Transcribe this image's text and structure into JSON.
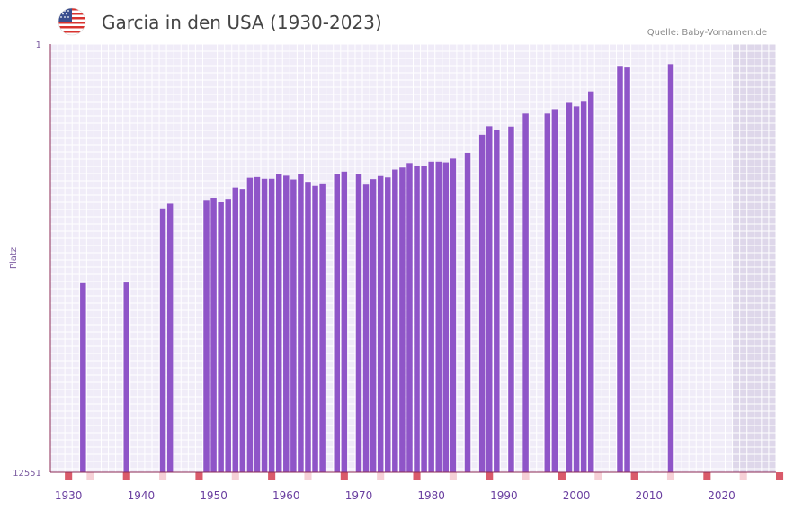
{
  "header": {
    "title": "Garcia in den USA (1930-2023)",
    "source": "Quelle: Baby-Vornamen.de",
    "flag_icon": "usa-flag-icon"
  },
  "colors": {
    "bar": "#8f55c8",
    "grid_bg": "#f0ecf8",
    "grid_line": "#ffffff",
    "axis": "#8b2a55",
    "future_shade": "#d9d2e6",
    "marker_strong": "#d95a6a",
    "marker_weak": "#f6d0d6"
  },
  "chart_data": {
    "type": "bar",
    "title": "Garcia in den USA (1930-2023)",
    "xlabel": "",
    "ylabel": "Platz",
    "y_inverted": true,
    "ylim": [
      1,
      12551
    ],
    "y_ticks": [
      1,
      12551
    ],
    "xlim": [
      1928,
      2028
    ],
    "x_ticks": [
      1930,
      1940,
      1950,
      1960,
      1970,
      1980,
      1990,
      2000,
      2010,
      2020
    ],
    "shaded_range": [
      2022,
      2028
    ],
    "series": [
      {
        "name": "Platz",
        "points": [
          [
            1932,
            7010
          ],
          [
            1938,
            6990
          ],
          [
            1943,
            4820
          ],
          [
            1944,
            4680
          ],
          [
            1949,
            4570
          ],
          [
            1950,
            4510
          ],
          [
            1951,
            4640
          ],
          [
            1952,
            4540
          ],
          [
            1953,
            4210
          ],
          [
            1954,
            4250
          ],
          [
            1955,
            3920
          ],
          [
            1956,
            3900
          ],
          [
            1957,
            3950
          ],
          [
            1958,
            3950
          ],
          [
            1959,
            3800
          ],
          [
            1960,
            3860
          ],
          [
            1961,
            3970
          ],
          [
            1962,
            3820
          ],
          [
            1963,
            4040
          ],
          [
            1964,
            4160
          ],
          [
            1965,
            4110
          ],
          [
            1967,
            3820
          ],
          [
            1968,
            3740
          ],
          [
            1970,
            3820
          ],
          [
            1971,
            4120
          ],
          [
            1972,
            3960
          ],
          [
            1973,
            3870
          ],
          [
            1974,
            3910
          ],
          [
            1975,
            3680
          ],
          [
            1976,
            3620
          ],
          [
            1977,
            3490
          ],
          [
            1978,
            3570
          ],
          [
            1979,
            3570
          ],
          [
            1980,
            3450
          ],
          [
            1981,
            3450
          ],
          [
            1982,
            3470
          ],
          [
            1983,
            3360
          ],
          [
            1985,
            3190
          ],
          [
            1987,
            2660
          ],
          [
            1988,
            2410
          ],
          [
            1989,
            2520
          ],
          [
            1991,
            2420
          ],
          [
            1993,
            2040
          ],
          [
            1996,
            2040
          ],
          [
            1997,
            1910
          ],
          [
            1999,
            1700
          ],
          [
            2000,
            1830
          ],
          [
            2001,
            1670
          ],
          [
            2002,
            1390
          ],
          [
            2006,
            640
          ],
          [
            2007,
            690
          ],
          [
            2013,
            590
          ]
        ]
      }
    ],
    "year_markers_strong": [
      1930,
      1938,
      1948,
      1958,
      1968,
      1978,
      1988,
      1998,
      2008,
      2018,
      2028
    ],
    "year_markers_weak": [
      1933,
      1943,
      1953,
      1963,
      1973,
      1983,
      1993,
      2003,
      2013,
      2023
    ]
  }
}
